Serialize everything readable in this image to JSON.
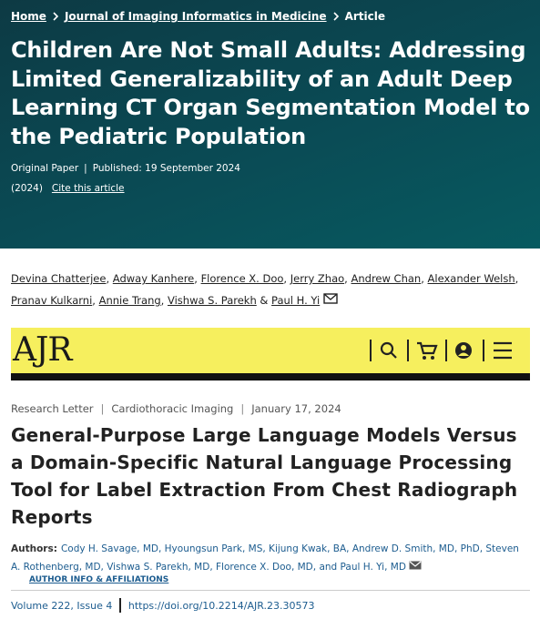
{
  "article1": {
    "breadcrumb": [
      "Home",
      "Journal of Imaging Informatics in Medicine",
      "Article"
    ],
    "title": "Children Are Not Small Adults: Addressing Limited Generalizability of an Adult Deep Learning CT Organ Segmentation Model to the Pediatric Population",
    "article_type": "Original Paper",
    "published": "Published: 19 September 2024",
    "year": "(2024)",
    "cite": "Cite this article",
    "authors": [
      "Devina Chatterjee",
      "Adway Kanhere",
      "Florence X. Doo",
      "Jerry Zhao",
      "Andrew Chan",
      "Alexander Welsh",
      "Pranav Kulkarni",
      "Annie Trang",
      "Vishwa S. Parekh",
      "Paul H. Yi"
    ],
    "last_connector": "&"
  },
  "article2": {
    "logo": "AJR",
    "meta": [
      "Research Letter",
      "Cardiothoracic Imaging",
      "January 17, 2024"
    ],
    "title": "General-Purpose Large Language Models Versus a Domain-Specific Natural Language Processing Tool for Label Extraction From Chest Radiograph Reports",
    "authors_label": "Authors:",
    "authors": "Cody H. Savage, MD, Hyoungsun Park, MS, Kijung Kwak, BA, Andrew D. Smith, MD, PhD, Steven A. Rothenberg, MD, Vishwa S. Parekh, MD, Florence X. Doo, MD, and Paul H. Yi, MD",
    "affiliations": "AUTHOR INFO & AFFILIATIONS",
    "volume": "Volume 222, Issue 4",
    "doi": "https://doi.org/10.2214/AJR.23.30573"
  }
}
